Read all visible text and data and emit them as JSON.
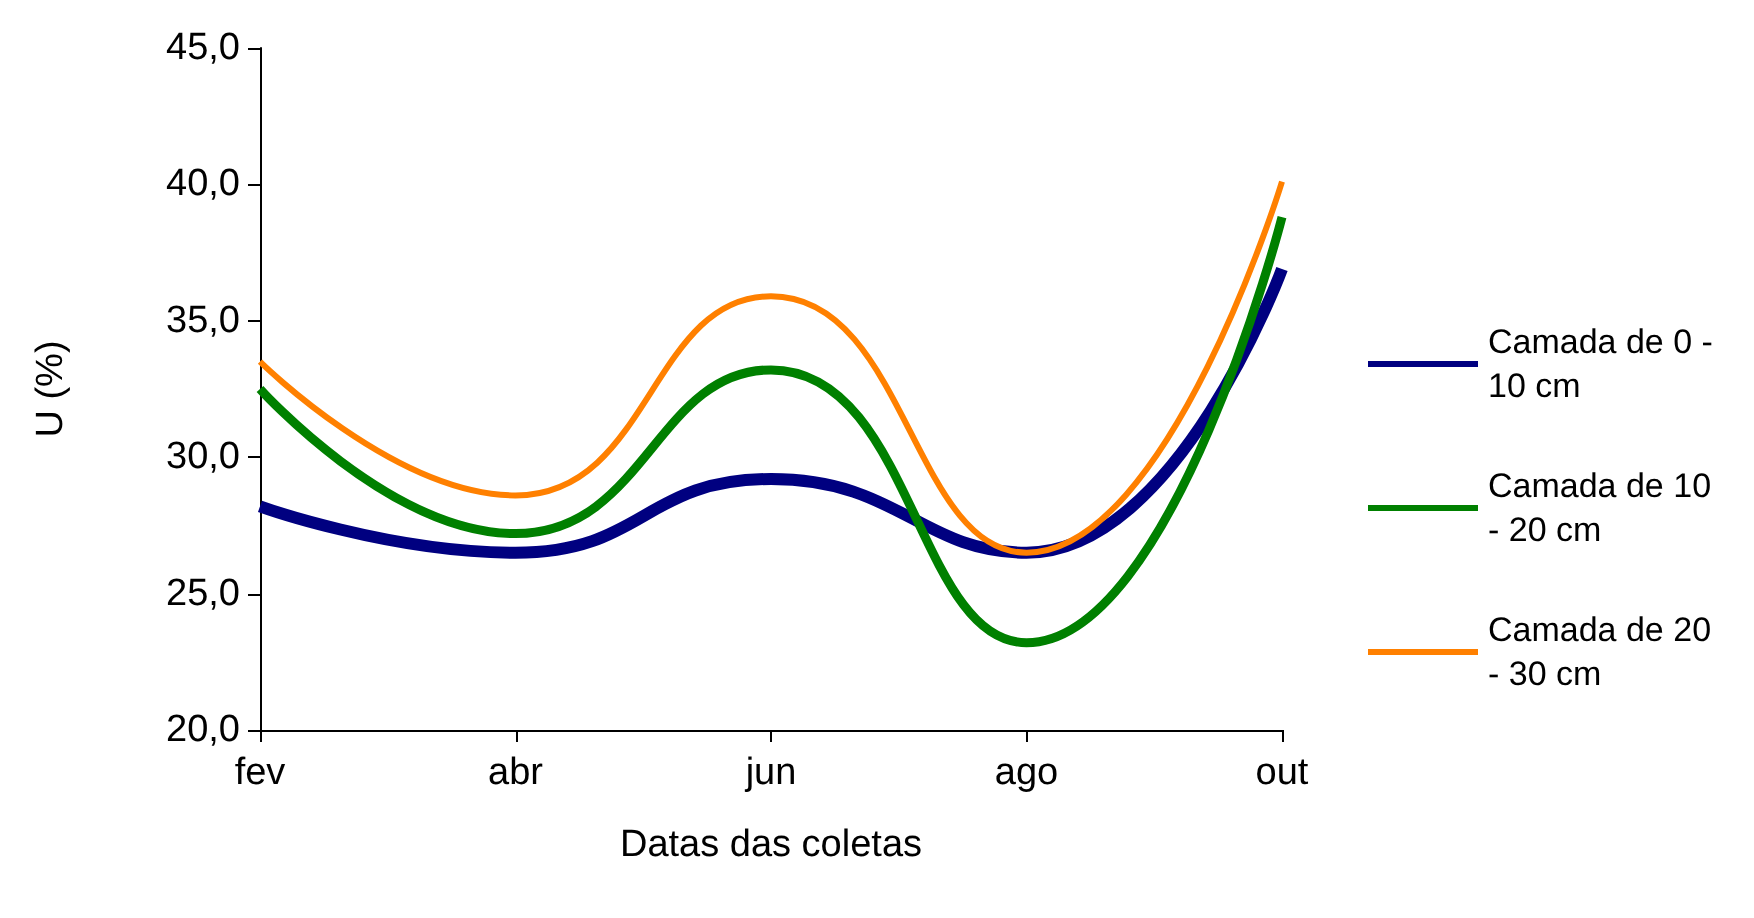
{
  "chart_data": {
    "type": "line",
    "xlabel": "Datas das coletas",
    "ylabel": "U (%)",
    "categories": [
      "fev",
      "abr",
      "jun",
      "ago",
      "out"
    ],
    "series": [
      {
        "name": "Camada de 0 - 10 cm",
        "color": "#000080",
        "values": [
          28.2,
          26.5,
          29.2,
          26.5,
          36.9
        ]
      },
      {
        "name": "Camada de 10 - 20 cm",
        "color": "#008000",
        "values": [
          32.5,
          27.2,
          33.2,
          23.2,
          38.8
        ]
      },
      {
        "name": "Camada de 20 - 30 cm",
        "color": "#ff8000",
        "values": [
          33.5,
          28.6,
          35.9,
          26.5,
          40.1
        ]
      }
    ],
    "ylim": [
      20,
      45
    ],
    "yticks": [
      {
        "value": 20,
        "label": "20,0"
      },
      {
        "value": 25,
        "label": "25,0"
      },
      {
        "value": 30,
        "label": "30,0"
      },
      {
        "value": 35,
        "label": "35,0"
      },
      {
        "value": 40,
        "label": "40,0"
      },
      {
        "value": 45,
        "label": "45,0"
      }
    ],
    "grid": false,
    "legend": "right",
    "marker": "none",
    "line_style": "solid"
  }
}
